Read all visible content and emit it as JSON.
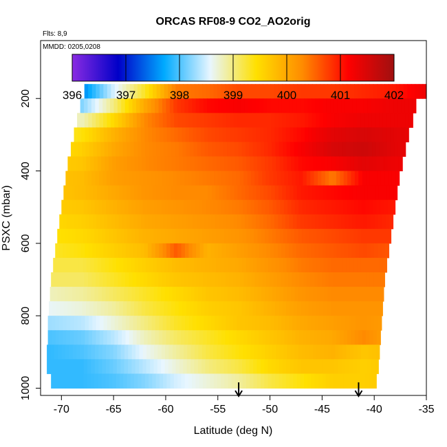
{
  "chart_data": {
    "type": "heatmap",
    "title": "ORCAS RF08-9 CO2_AO2orig",
    "subtitle": "Flts: 8,9",
    "annotation": "MMDD: 0205,0208",
    "xlabel": "Latitude (deg N)",
    "ylabel": "PSXC (mbar)",
    "xlim": [
      -72,
      -35
    ],
    "ylim": [
      1020,
      40
    ],
    "y_reversed": true,
    "grid": false,
    "x_ticks": [
      -70,
      -65,
      -60,
      -55,
      -50,
      -45,
      -40,
      -35
    ],
    "y_ticks": [
      200,
      400,
      600,
      800,
      1000
    ],
    "colorbar": {
      "ticks": [
        396,
        397,
        398,
        399,
        400,
        401,
        402
      ],
      "range": [
        396,
        402
      ],
      "colors": [
        "#8a2be2",
        "#0000c8",
        "#00aaff",
        "#e8f6ff",
        "#ffe000",
        "#ff8c00",
        "#ff0000",
        "#a01010"
      ]
    },
    "arrows_at_latitude": [
      -53,
      -41.5
    ],
    "rows_pressure": [
      180,
      220,
      260,
      300,
      340,
      380,
      420,
      460,
      500,
      540,
      580,
      620,
      660,
      700,
      740,
      780,
      820,
      860,
      900,
      940,
      980
    ],
    "row_lat_range": [
      [
        -67.8,
        -35.0
      ],
      [
        -68.2,
        -36.0
      ],
      [
        -68.5,
        -36.3
      ],
      [
        -68.8,
        -36.7
      ],
      [
        -69.1,
        -37.0
      ],
      [
        -69.4,
        -37.3
      ],
      [
        -69.6,
        -37.6
      ],
      [
        -69.8,
        -37.8
      ],
      [
        -70.0,
        -38.0
      ],
      [
        -70.2,
        -38.2
      ],
      [
        -70.4,
        -38.4
      ],
      [
        -70.6,
        -38.6
      ],
      [
        -70.8,
        -38.8
      ],
      [
        -71.0,
        -39.0
      ],
      [
        -71.1,
        -39.1
      ],
      [
        -71.2,
        -39.2
      ],
      [
        -71.3,
        -39.3
      ],
      [
        -71.3,
        -39.4
      ],
      [
        -71.4,
        -39.5
      ],
      [
        -71.4,
        -39.6
      ],
      [
        -71.0,
        -39.8
      ]
    ],
    "values_lat": [
      -71,
      -68,
      -65,
      -62,
      -59,
      -56,
      -53,
      -50,
      -47,
      -44,
      -41,
      -38,
      -35
    ],
    "values": [
      [
        398.0,
        397.5,
        398.5,
        399.3,
        400.4,
        400.5,
        400.7,
        400.7,
        400.8,
        400.8,
        400.9,
        401.0,
        401.3
      ],
      [
        398.4,
        398.2,
        399.0,
        400.0,
        400.8,
        401.1,
        401.2,
        401.1,
        401.1,
        401.2,
        401.2,
        401.3,
        401.3
      ],
      [
        398.8,
        398.8,
        399.5,
        400.3,
        400.7,
        400.8,
        400.9,
        400.9,
        401.0,
        401.2,
        401.3,
        401.3,
        401.3
      ],
      [
        399.2,
        399.4,
        399.9,
        400.3,
        400.5,
        400.7,
        400.8,
        400.9,
        401.1,
        401.4,
        401.5,
        401.4,
        401.3
      ],
      [
        399.4,
        399.6,
        400.0,
        400.3,
        400.4,
        400.6,
        400.7,
        400.9,
        401.2,
        401.5,
        401.6,
        401.4,
        401.3
      ],
      [
        399.6,
        399.7,
        400.1,
        400.3,
        400.4,
        400.5,
        400.6,
        400.8,
        401.1,
        401.2,
        401.4,
        401.3,
        401.3
      ],
      [
        399.7,
        399.8,
        400.1,
        400.2,
        400.3,
        400.4,
        400.5,
        400.8,
        401.0,
        400.4,
        401.2,
        401.2,
        401.2
      ],
      [
        399.7,
        399.8,
        400.0,
        400.2,
        400.3,
        400.3,
        400.5,
        400.7,
        401.0,
        401.1,
        401.2,
        401.2,
        401.1
      ],
      [
        399.6,
        399.7,
        399.9,
        400.1,
        400.2,
        400.3,
        400.4,
        400.6,
        400.9,
        401.0,
        401.1,
        401.0,
        401.0
      ],
      [
        399.5,
        399.6,
        399.8,
        400.0,
        400.1,
        400.2,
        400.3,
        400.5,
        400.8,
        400.9,
        401.0,
        400.9,
        400.9
      ],
      [
        399.4,
        399.5,
        399.7,
        399.9,
        400.0,
        400.1,
        400.2,
        400.4,
        400.6,
        400.7,
        400.8,
        400.8,
        400.7
      ],
      [
        399.3,
        399.4,
        399.6,
        399.8,
        400.6,
        399.9,
        400.1,
        400.3,
        400.5,
        400.6,
        400.7,
        400.6,
        400.6
      ],
      [
        399.2,
        399.2,
        399.4,
        399.6,
        399.8,
        399.9,
        400.0,
        400.2,
        400.4,
        400.5,
        400.5,
        400.5,
        400.4
      ],
      [
        399.1,
        399.1,
        399.3,
        399.5,
        399.7,
        399.8,
        399.9,
        400.1,
        400.3,
        400.4,
        400.4,
        400.4,
        400.3
      ],
      [
        398.8,
        398.9,
        399.1,
        399.3,
        399.5,
        399.7,
        399.8,
        400.0,
        400.2,
        400.3,
        400.3,
        400.3,
        400.2
      ],
      [
        398.6,
        398.7,
        398.9,
        399.2,
        399.4,
        399.6,
        399.7,
        399.9,
        400.1,
        400.2,
        400.2,
        400.2,
        400.1
      ],
      [
        398.3,
        398.4,
        398.7,
        399.0,
        399.3,
        399.5,
        399.7,
        399.8,
        400.0,
        400.1,
        400.2,
        400.1,
        400.0
      ],
      [
        398.0,
        398.1,
        398.4,
        398.8,
        399.1,
        399.3,
        399.5,
        399.7,
        399.9,
        400.0,
        400.3,
        400.0,
        399.9
      ],
      [
        397.9,
        398.0,
        398.2,
        398.6,
        398.9,
        399.2,
        399.4,
        399.6,
        399.8,
        399.9,
        399.7,
        399.8,
        399.8
      ],
      [
        397.9,
        397.9,
        398.1,
        398.4,
        398.7,
        399.0,
        399.2,
        399.5,
        399.7,
        399.7,
        399.6,
        399.7,
        399.7
      ],
      [
        397.9,
        397.9,
        398.0,
        398.2,
        398.5,
        398.7,
        398.9,
        399.2,
        399.4,
        399.6,
        399.6,
        399.7,
        399.7
      ]
    ]
  }
}
